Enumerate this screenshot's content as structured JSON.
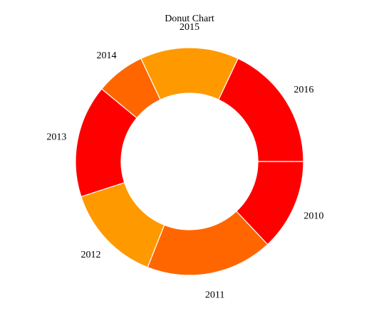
{
  "chart_data": {
    "type": "pie",
    "variant": "donut",
    "title": "Donut Chart",
    "slices": [
      {
        "label": "2010",
        "value": 13,
        "color": "#ff0000"
      },
      {
        "label": "2011",
        "value": 18,
        "color": "#ff6600"
      },
      {
        "label": "2012",
        "value": 14,
        "color": "#ff9900"
      },
      {
        "label": "2013",
        "value": 16,
        "color": "#ff0000"
      },
      {
        "label": "2014",
        "value": 7,
        "color": "#ff6600"
      },
      {
        "label": "2015",
        "value": 14,
        "color": "#ff9900"
      },
      {
        "label": "2016",
        "value": 18,
        "color": "#ff0000"
      }
    ],
    "legend": "none"
  }
}
